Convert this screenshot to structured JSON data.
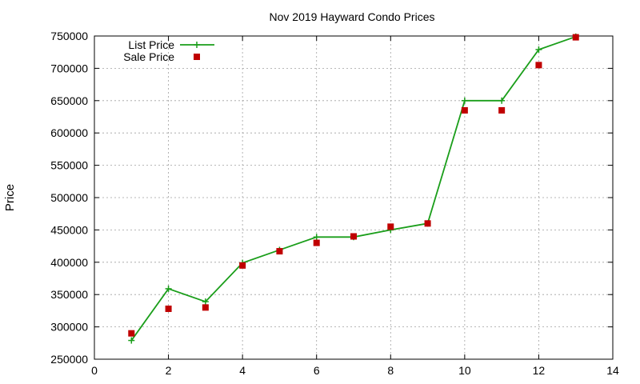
{
  "chart_data": {
    "type": "line",
    "title": "Nov 2019 Hayward Condo Prices",
    "xlabel": "",
    "ylabel": "Price",
    "xlim": [
      0,
      14
    ],
    "ylim": [
      250000,
      750000
    ],
    "xticks": [
      0,
      2,
      4,
      6,
      8,
      10,
      12,
      14
    ],
    "yticks": [
      250000,
      300000,
      350000,
      400000,
      450000,
      500000,
      550000,
      600000,
      650000,
      700000,
      750000
    ],
    "grid": true,
    "legend_position": "top-left",
    "series": [
      {
        "name": "List Price",
        "style": "line-with-plus-markers",
        "color": "#1a9e1a",
        "x": [
          1,
          2,
          3,
          4,
          5,
          6,
          7,
          8,
          9,
          10,
          11,
          12,
          13
        ],
        "y": [
          279000,
          359000,
          339000,
          399000,
          419000,
          439000,
          439000,
          450000,
          460000,
          650000,
          650000,
          729000,
          749000
        ]
      },
      {
        "name": "Sale Price",
        "style": "square-markers",
        "color": "#c00000",
        "x": [
          1,
          2,
          3,
          4,
          5,
          6,
          7,
          8,
          9,
          10,
          11,
          12,
          13
        ],
        "y": [
          290000,
          328000,
          330000,
          395000,
          417000,
          430000,
          440000,
          455000,
          460000,
          635000,
          635000,
          705000,
          748000
        ]
      }
    ]
  }
}
